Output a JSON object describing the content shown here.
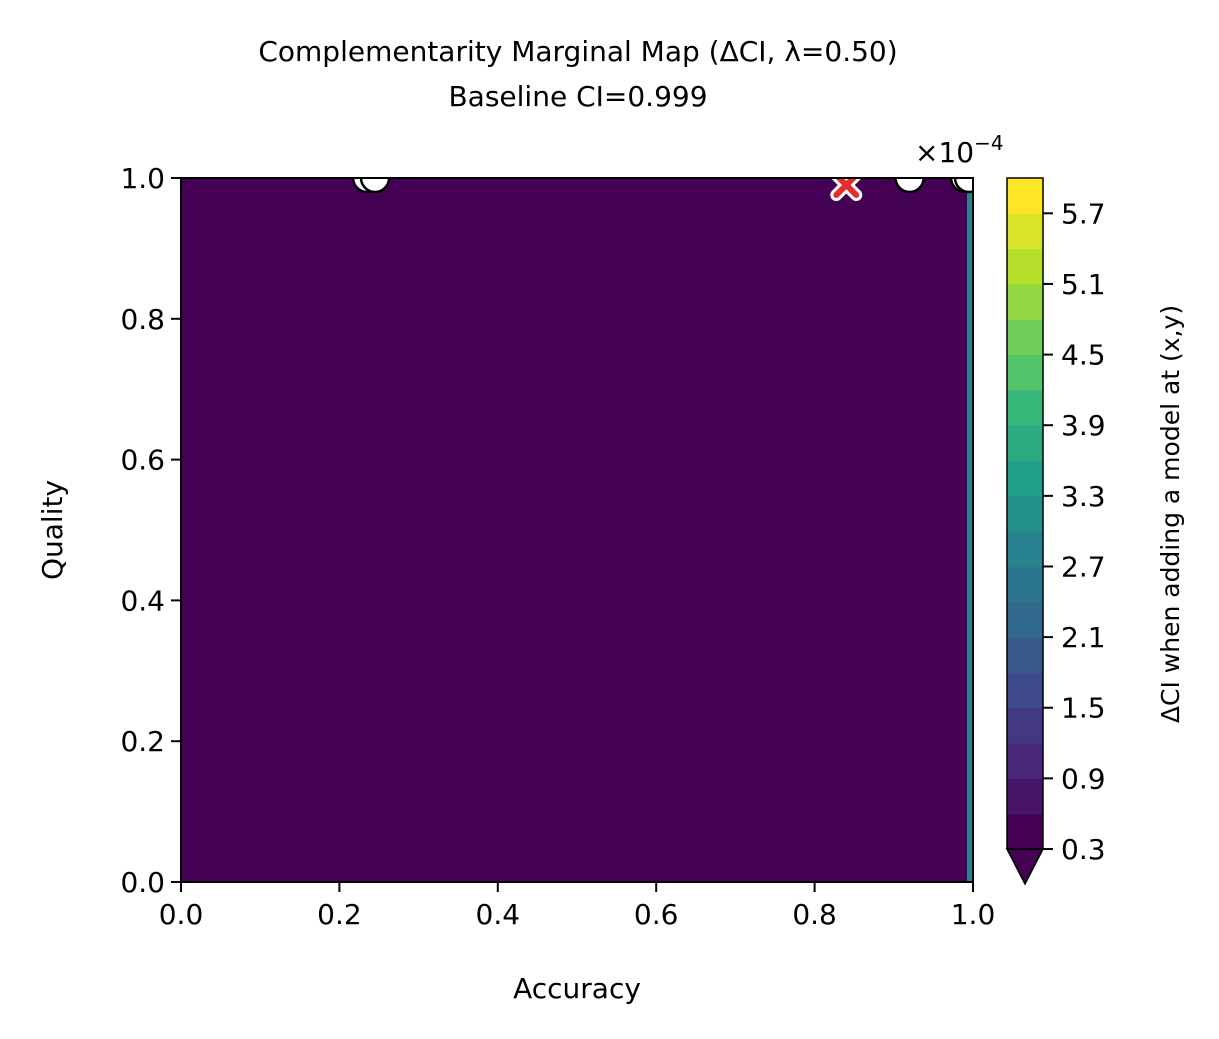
{
  "chart_data": {
    "type": "heatmap",
    "title": "Complementarity Marginal Map (ΔCI, λ=0.50)",
    "subtitle": "Baseline CI=0.999",
    "xlabel": "Accuracy",
    "ylabel": "Quality",
    "xlim": [
      0.0,
      1.0
    ],
    "ylim": [
      0.0,
      1.0
    ],
    "x_ticks": [
      0.0,
      0.2,
      0.4,
      0.6,
      0.8,
      1.0
    ],
    "y_ticks": [
      0.0,
      0.2,
      0.4,
      0.6,
      0.8,
      1.0
    ],
    "x_tick_labels": [
      "0.0",
      "0.2",
      "0.4",
      "0.6",
      "0.8",
      "1.0"
    ],
    "y_tick_labels": [
      "0.0",
      "0.2",
      "0.4",
      "0.6",
      "0.8",
      "1.0"
    ],
    "colorscale": "viridis",
    "field_note": "ΔCI is near the minimum level across the whole domain; a thin higher band appears only at Accuracy ≈ 1.0",
    "colorbar": {
      "label": "ΔCI when adding a model at (x,y)",
      "multiplier_base": "×10",
      "multiplier_exp": "−4",
      "range": [
        0.3,
        6.0
      ],
      "ticks": [
        0.3,
        0.9,
        1.5,
        2.1,
        2.7,
        3.3,
        3.9,
        4.5,
        5.1,
        5.7
      ],
      "tick_labels": [
        "0.3",
        "0.9",
        "1.5",
        "2.1",
        "2.7",
        "3.3",
        "3.9",
        "4.5",
        "5.1",
        "5.7"
      ],
      "levels": 19,
      "extend": "min"
    },
    "existing_models": [
      {
        "x": 0.235,
        "y": 1.0
      },
      {
        "x": 0.245,
        "y": 1.0
      },
      {
        "x": 0.92,
        "y": 1.0
      },
      {
        "x": 0.99,
        "y": 1.0
      },
      {
        "x": 0.995,
        "y": 1.0
      }
    ],
    "best_candidate": {
      "x": 0.84,
      "y": 0.99,
      "marker": "X",
      "color": "#e0302a"
    },
    "colors": {
      "field_min": "#440154",
      "point_fill": "#ffffff",
      "point_edge": "#000000"
    }
  }
}
